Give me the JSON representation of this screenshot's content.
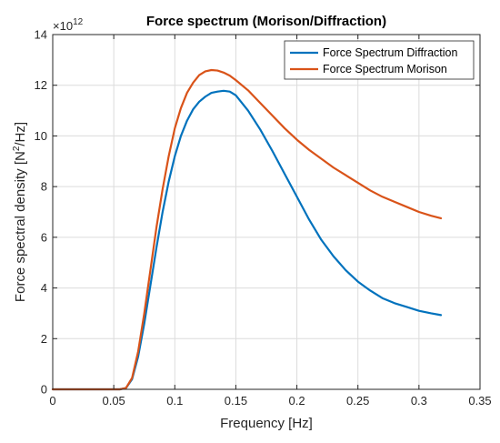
{
  "chart_data": {
    "type": "line",
    "title": "Force spectrum (Morison/Diffraction)",
    "xlabel": "Frequency [Hz]",
    "ylabel_prefix": "Force spectral density [N",
    "ylabel_sup": "2",
    "ylabel_suffix": "/Hz]",
    "exponent_base": "×10",
    "exponent_power": "12",
    "xlim": [
      0,
      0.35
    ],
    "ylim": [
      0,
      14
    ],
    "xticks": [
      0,
      0.05,
      0.1,
      0.15,
      0.2,
      0.25,
      0.3,
      0.35
    ],
    "xtick_labels": [
      "0",
      "0.05",
      "0.1",
      "0.15",
      "0.2",
      "0.25",
      "0.3",
      "0.35"
    ],
    "yticks": [
      0,
      2,
      4,
      6,
      8,
      10,
      12,
      14
    ],
    "ytick_labels": [
      "0",
      "2",
      "4",
      "6",
      "8",
      "10",
      "12",
      "14"
    ],
    "grid": true,
    "legend_position": "top-right",
    "series": [
      {
        "name": "Force Spectrum Diffraction",
        "color": "#0072BD",
        "x": [
          0,
          0.055,
          0.06,
          0.065,
          0.07,
          0.075,
          0.08,
          0.085,
          0.09,
          0.095,
          0.1,
          0.105,
          0.11,
          0.115,
          0.12,
          0.125,
          0.13,
          0.135,
          0.14,
          0.145,
          0.15,
          0.16,
          0.17,
          0.18,
          0.19,
          0.2,
          0.21,
          0.22,
          0.23,
          0.24,
          0.25,
          0.26,
          0.27,
          0.28,
          0.29,
          0.3,
          0.31,
          0.318
        ],
        "y": [
          0,
          0,
          0.05,
          0.4,
          1.3,
          2.6,
          4.1,
          5.6,
          7.0,
          8.2,
          9.2,
          10.0,
          10.6,
          11.05,
          11.35,
          11.55,
          11.7,
          11.75,
          11.78,
          11.75,
          11.6,
          11.0,
          10.25,
          9.4,
          8.5,
          7.6,
          6.7,
          5.9,
          5.25,
          4.7,
          4.25,
          3.9,
          3.6,
          3.4,
          3.25,
          3.1,
          3.0,
          2.93
        ]
      },
      {
        "name": "Force Spectrum Morison",
        "color": "#D95319",
        "x": [
          0,
          0.055,
          0.06,
          0.065,
          0.07,
          0.075,
          0.08,
          0.085,
          0.09,
          0.095,
          0.1,
          0.105,
          0.11,
          0.115,
          0.12,
          0.125,
          0.13,
          0.135,
          0.14,
          0.145,
          0.15,
          0.16,
          0.17,
          0.18,
          0.19,
          0.2,
          0.21,
          0.22,
          0.23,
          0.24,
          0.25,
          0.26,
          0.27,
          0.28,
          0.29,
          0.3,
          0.31,
          0.318
        ],
        "y": [
          0,
          0,
          0.05,
          0.45,
          1.5,
          3.0,
          4.7,
          6.4,
          7.9,
          9.2,
          10.3,
          11.1,
          11.7,
          12.1,
          12.4,
          12.55,
          12.6,
          12.58,
          12.5,
          12.38,
          12.2,
          11.8,
          11.3,
          10.8,
          10.3,
          9.85,
          9.45,
          9.1,
          8.75,
          8.45,
          8.15,
          7.85,
          7.6,
          7.4,
          7.2,
          7.0,
          6.85,
          6.75
        ]
      }
    ]
  }
}
